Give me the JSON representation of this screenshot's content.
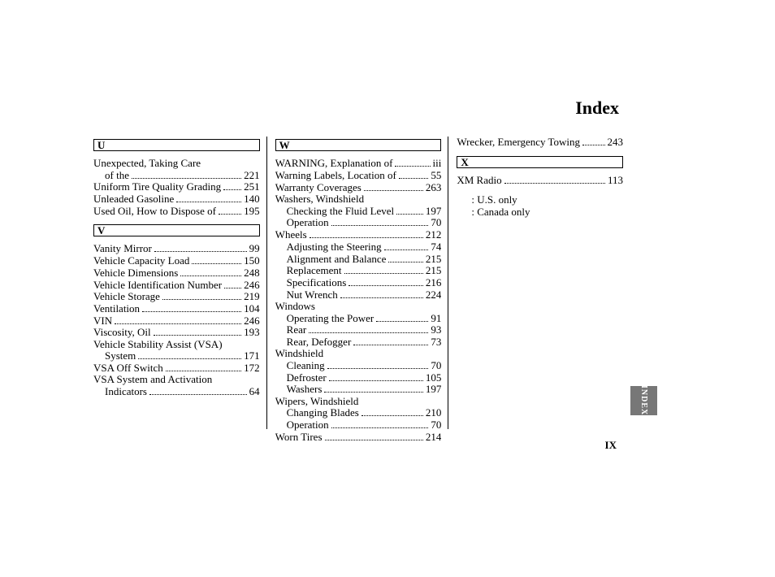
{
  "title": "Index",
  "sideTab": "INDEX",
  "pageNum": "IX",
  "notes": [
    ": U.S. only",
    ": Canada only"
  ],
  "columns": [
    [
      {
        "type": "hdr",
        "letter": "U"
      },
      {
        "type": "spacer"
      },
      {
        "type": "head",
        "label": "Unexpected, Taking Care"
      },
      {
        "type": "sub",
        "label": "of the",
        "page": "221"
      },
      {
        "type": "entry",
        "label": "Uniform Tire Quality Grading",
        "page": "251"
      },
      {
        "type": "entry",
        "label": "Unleaded Gasoline",
        "page": "140"
      },
      {
        "type": "entry",
        "label": "Used Oil, How to Dispose of",
        "page": "195"
      },
      {
        "type": "spacer"
      },
      {
        "type": "hdr",
        "letter": "V"
      },
      {
        "type": "spacer"
      },
      {
        "type": "entry",
        "label": "Vanity Mirror",
        "page": "99"
      },
      {
        "type": "entry",
        "label": "Vehicle Capacity Load",
        "page": "150"
      },
      {
        "type": "entry",
        "label": "Vehicle Dimensions",
        "page": "248"
      },
      {
        "type": "entry",
        "label": "Vehicle Identification Number",
        "page": "246"
      },
      {
        "type": "entry",
        "label": "Vehicle Storage",
        "page": "219"
      },
      {
        "type": "entry",
        "label": "Ventilation",
        "page": "104"
      },
      {
        "type": "entry",
        "label": "VIN",
        "page": "246"
      },
      {
        "type": "entry",
        "label": "Viscosity, Oil",
        "page": "193"
      },
      {
        "type": "head",
        "label": "Vehicle Stability Assist (VSA)"
      },
      {
        "type": "sub",
        "label": "System",
        "page": "171"
      },
      {
        "type": "entry",
        "label": "VSA Off Switch",
        "page": "172"
      },
      {
        "type": "head",
        "label": "VSA System and Activation"
      },
      {
        "type": "sub",
        "label": "Indicators",
        "page": "64"
      }
    ],
    [
      {
        "type": "hdr",
        "letter": "W"
      },
      {
        "type": "spacer"
      },
      {
        "type": "entry",
        "label": "WARNING, Explanation of",
        "page": "iii"
      },
      {
        "type": "entry",
        "label": "Warning Labels, Location of",
        "page": "55"
      },
      {
        "type": "entry",
        "label": "Warranty Coverages",
        "page": "263"
      },
      {
        "type": "head",
        "label": "Washers, Windshield"
      },
      {
        "type": "sub",
        "label": "Checking the Fluid Level",
        "page": "197"
      },
      {
        "type": "sub",
        "label": "Operation",
        "page": "70"
      },
      {
        "type": "entry",
        "label": "Wheels",
        "page": "212"
      },
      {
        "type": "sub",
        "label": "Adjusting the Steering",
        "page": "74"
      },
      {
        "type": "sub",
        "label": "Alignment and Balance",
        "page": "215"
      },
      {
        "type": "sub",
        "label": "Replacement",
        "page": "215"
      },
      {
        "type": "sub",
        "label": "Specifications",
        "page": "216"
      },
      {
        "type": "sub",
        "label": "Nut Wrench",
        "page": "224"
      },
      {
        "type": "head",
        "label": "Windows"
      },
      {
        "type": "sub",
        "label": "Operating the Power",
        "page": "91"
      },
      {
        "type": "sub",
        "label": "Rear",
        "page": "93"
      },
      {
        "type": "sub",
        "label": "Rear, Defogger",
        "page": "73"
      },
      {
        "type": "head",
        "label": "Windshield"
      },
      {
        "type": "sub",
        "label": "Cleaning",
        "page": "70"
      },
      {
        "type": "sub",
        "label": "Defroster",
        "page": "105"
      },
      {
        "type": "sub",
        "label": "Washers",
        "page": "197"
      },
      {
        "type": "head",
        "label": "Wipers, Windshield"
      },
      {
        "type": "sub",
        "label": "Changing Blades",
        "page": "210"
      },
      {
        "type": "sub",
        "label": "Operation",
        "page": "70"
      },
      {
        "type": "entry",
        "label": "Worn Tires",
        "page": "214"
      }
    ],
    [
      {
        "type": "entry",
        "label": "Wrecker, Emergency Towing",
        "page": "243"
      },
      {
        "type": "spacer"
      },
      {
        "type": "hdr",
        "letter": "X"
      },
      {
        "type": "spacer"
      },
      {
        "type": "entry",
        "label": "XM Radio",
        "page": "113"
      },
      {
        "type": "notes"
      }
    ]
  ]
}
